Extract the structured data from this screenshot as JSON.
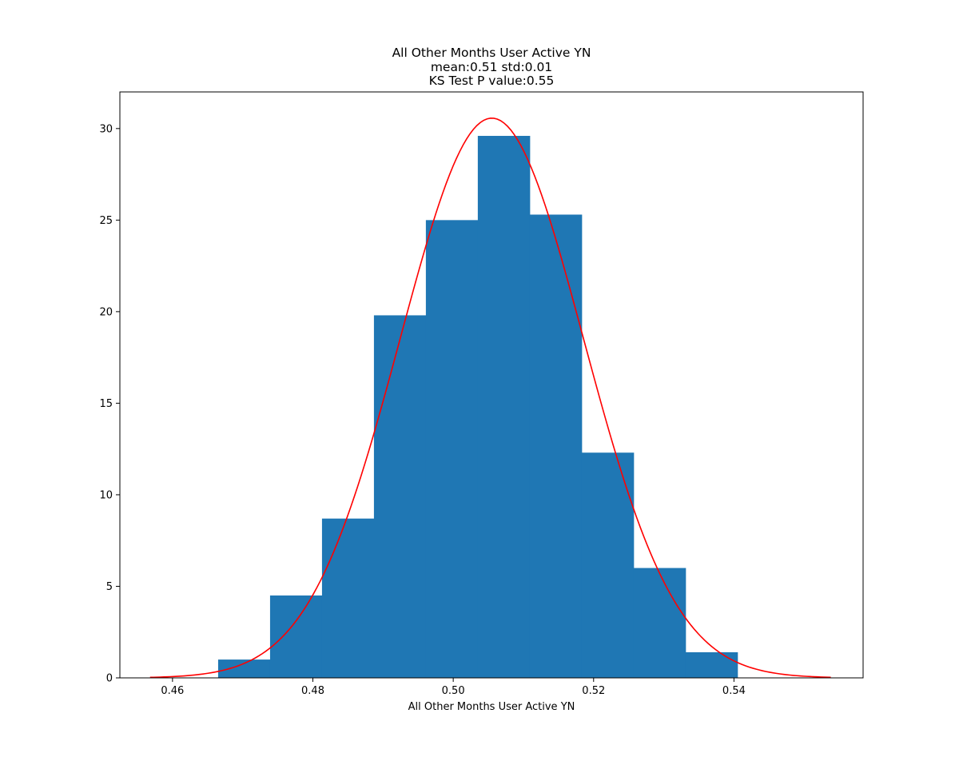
{
  "chart_data": {
    "type": "bar",
    "title_lines": [
      "All Other Months User Active YN",
      "mean:0.51 std:0.01",
      "KS Test P value:0.55"
    ],
    "xlabel": "All Other Months User Active YN",
    "ylabel": "",
    "xlim": [
      0.4525,
      0.5584
    ],
    "ylim": [
      0,
      32.0
    ],
    "xticks": [
      0.46,
      0.48,
      0.5,
      0.52,
      0.54
    ],
    "xtick_labels": [
      "0.46",
      "0.48",
      "0.50",
      "0.52",
      "0.54"
    ],
    "yticks": [
      0,
      5,
      10,
      15,
      20,
      25,
      30
    ],
    "ytick_labels": [
      "0",
      "5",
      "10",
      "15",
      "20",
      "25",
      "30"
    ],
    "grid": false,
    "legend": "none",
    "histogram": {
      "bin_edges": [
        0.4665,
        0.4739,
        0.4813,
        0.4887,
        0.4961,
        0.5035,
        0.5109,
        0.5183,
        0.5257,
        0.5331,
        0.5405
      ],
      "values": [
        1.0,
        4.5,
        8.7,
        19.8,
        25.0,
        29.6,
        25.3,
        12.3,
        6.0,
        1.4
      ],
      "color": "#1f77b4"
    },
    "normal_curve": {
      "mean": 0.5055,
      "std": 0.01305,
      "x_range": [
        0.4568,
        0.5538
      ],
      "color": "#ff0000"
    }
  }
}
